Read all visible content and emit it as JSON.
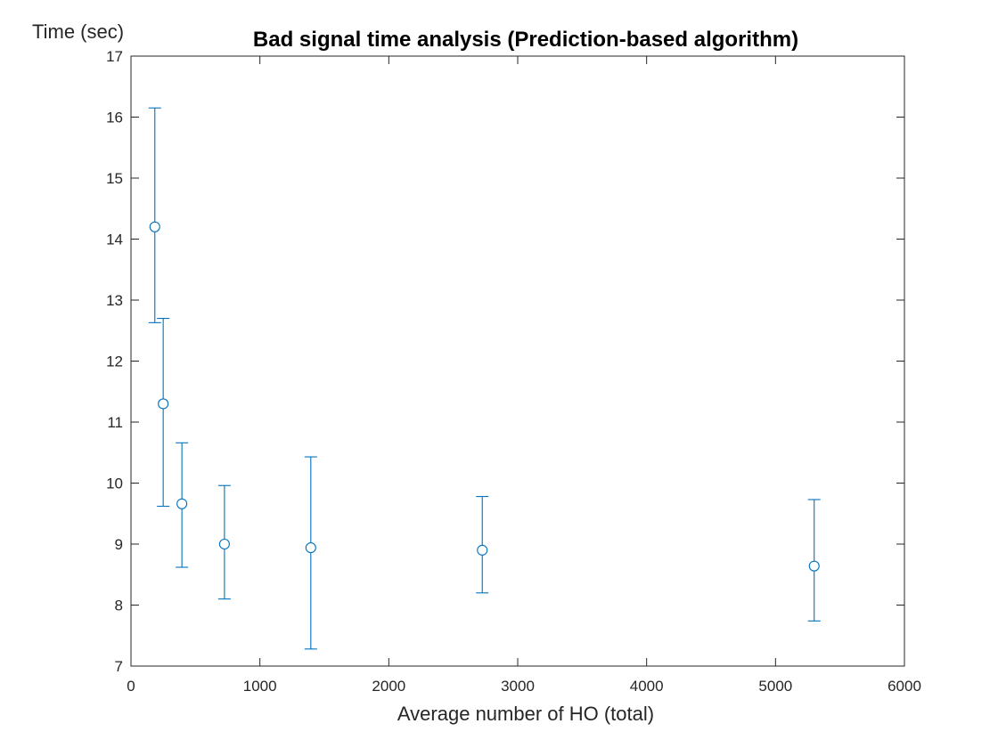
{
  "chart_data": {
    "type": "scatter",
    "title": "Bad signal time analysis (Prediction-based algorithm)",
    "xlabel": "Average number of HO (total)",
    "ylabel": "Time (sec)",
    "xlim": [
      0,
      6000
    ],
    "ylim": [
      7,
      17
    ],
    "xticks": [
      0,
      1000,
      2000,
      3000,
      4000,
      5000,
      6000
    ],
    "yticks": [
      7,
      8,
      9,
      10,
      11,
      12,
      13,
      14,
      15,
      16,
      17
    ],
    "grid": false,
    "legend": "none",
    "marker": "circle",
    "color": "#0072BD",
    "points": [
      {
        "x": 185,
        "y": 14.2,
        "lower": 12.63,
        "upper": 16.15
      },
      {
        "x": 250,
        "y": 11.3,
        "lower": 9.62,
        "upper": 12.7
      },
      {
        "x": 395,
        "y": 9.66,
        "lower": 8.62,
        "upper": 10.66
      },
      {
        "x": 725,
        "y": 9.0,
        "lower": 8.1,
        "upper": 9.96
      },
      {
        "x": 1395,
        "y": 8.94,
        "lower": 7.28,
        "upper": 10.43
      },
      {
        "x": 2725,
        "y": 8.9,
        "lower": 8.2,
        "upper": 9.78
      },
      {
        "x": 5300,
        "y": 8.64,
        "lower": 7.74,
        "upper": 9.73
      }
    ]
  }
}
